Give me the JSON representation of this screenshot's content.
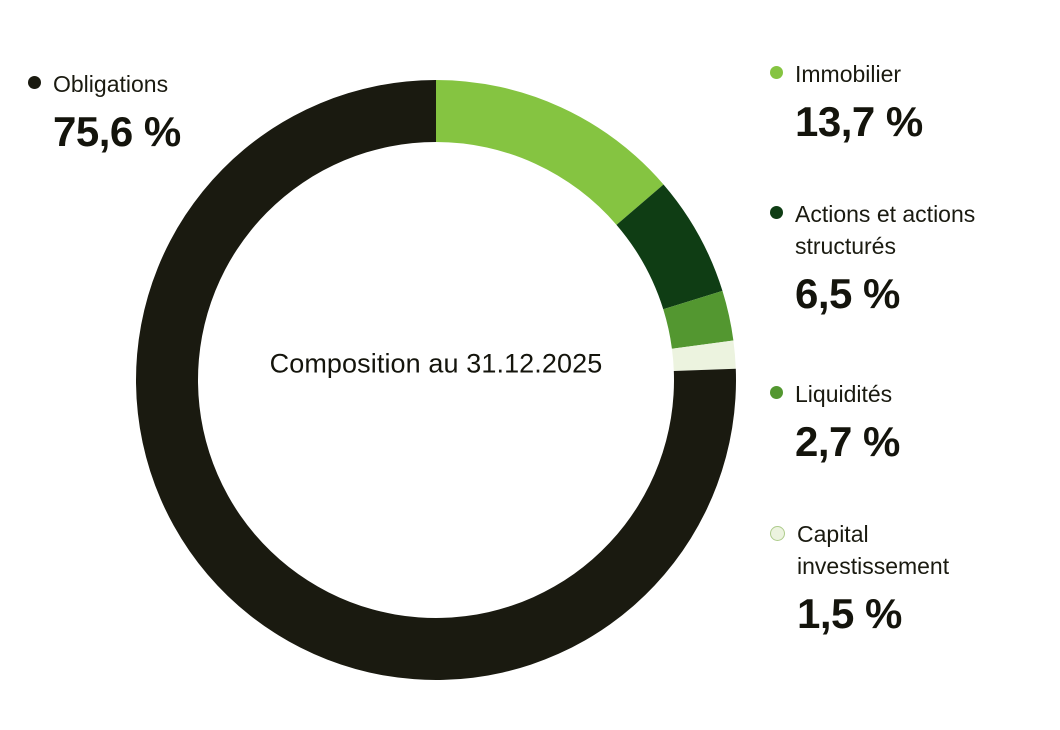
{
  "chart_data": {
    "type": "pie",
    "donut": true,
    "title": "Composition au 31.12.2025",
    "center_label": "Composition au 31.12.2025",
    "start_angle_deg": 0,
    "direction": "clockwise",
    "total": 100,
    "segments": [
      {
        "id": "immobilier",
        "label": "Immobilier",
        "value": 13.7,
        "display": "13,7 %",
        "color": "#85C441"
      },
      {
        "id": "actions",
        "label": "Actions et actions structurés",
        "value": 6.5,
        "display": "6,5 %",
        "color": "#0F3D14"
      },
      {
        "id": "liquidites",
        "label": "Liquidités",
        "value": 2.7,
        "display": "2,7 %",
        "color": "#539730"
      },
      {
        "id": "capital",
        "label": "Capital investissement",
        "value": 1.5,
        "display": "1,5 %",
        "color": "#ECF3DF",
        "legend_bullet": "outline"
      },
      {
        "id": "obligations",
        "label": "Obligations",
        "value": 75.6,
        "display": "75,6 %",
        "color": "#1A1A10"
      }
    ]
  },
  "legend": {
    "left": {
      "id": "obligations",
      "label": "Obligations",
      "value": "75,6 %"
    },
    "right": [
      {
        "id": "immobilier",
        "label": "Immobilier",
        "value": "13,7 %"
      },
      {
        "id": "actions",
        "label": "Actions et actions structurés",
        "value": "6,5 %"
      },
      {
        "id": "liquidites",
        "label": "Liquidités",
        "value": "2,7 %"
      },
      {
        "id": "capital",
        "label": "Capital investissement",
        "value": "1,5 %"
      }
    ]
  }
}
